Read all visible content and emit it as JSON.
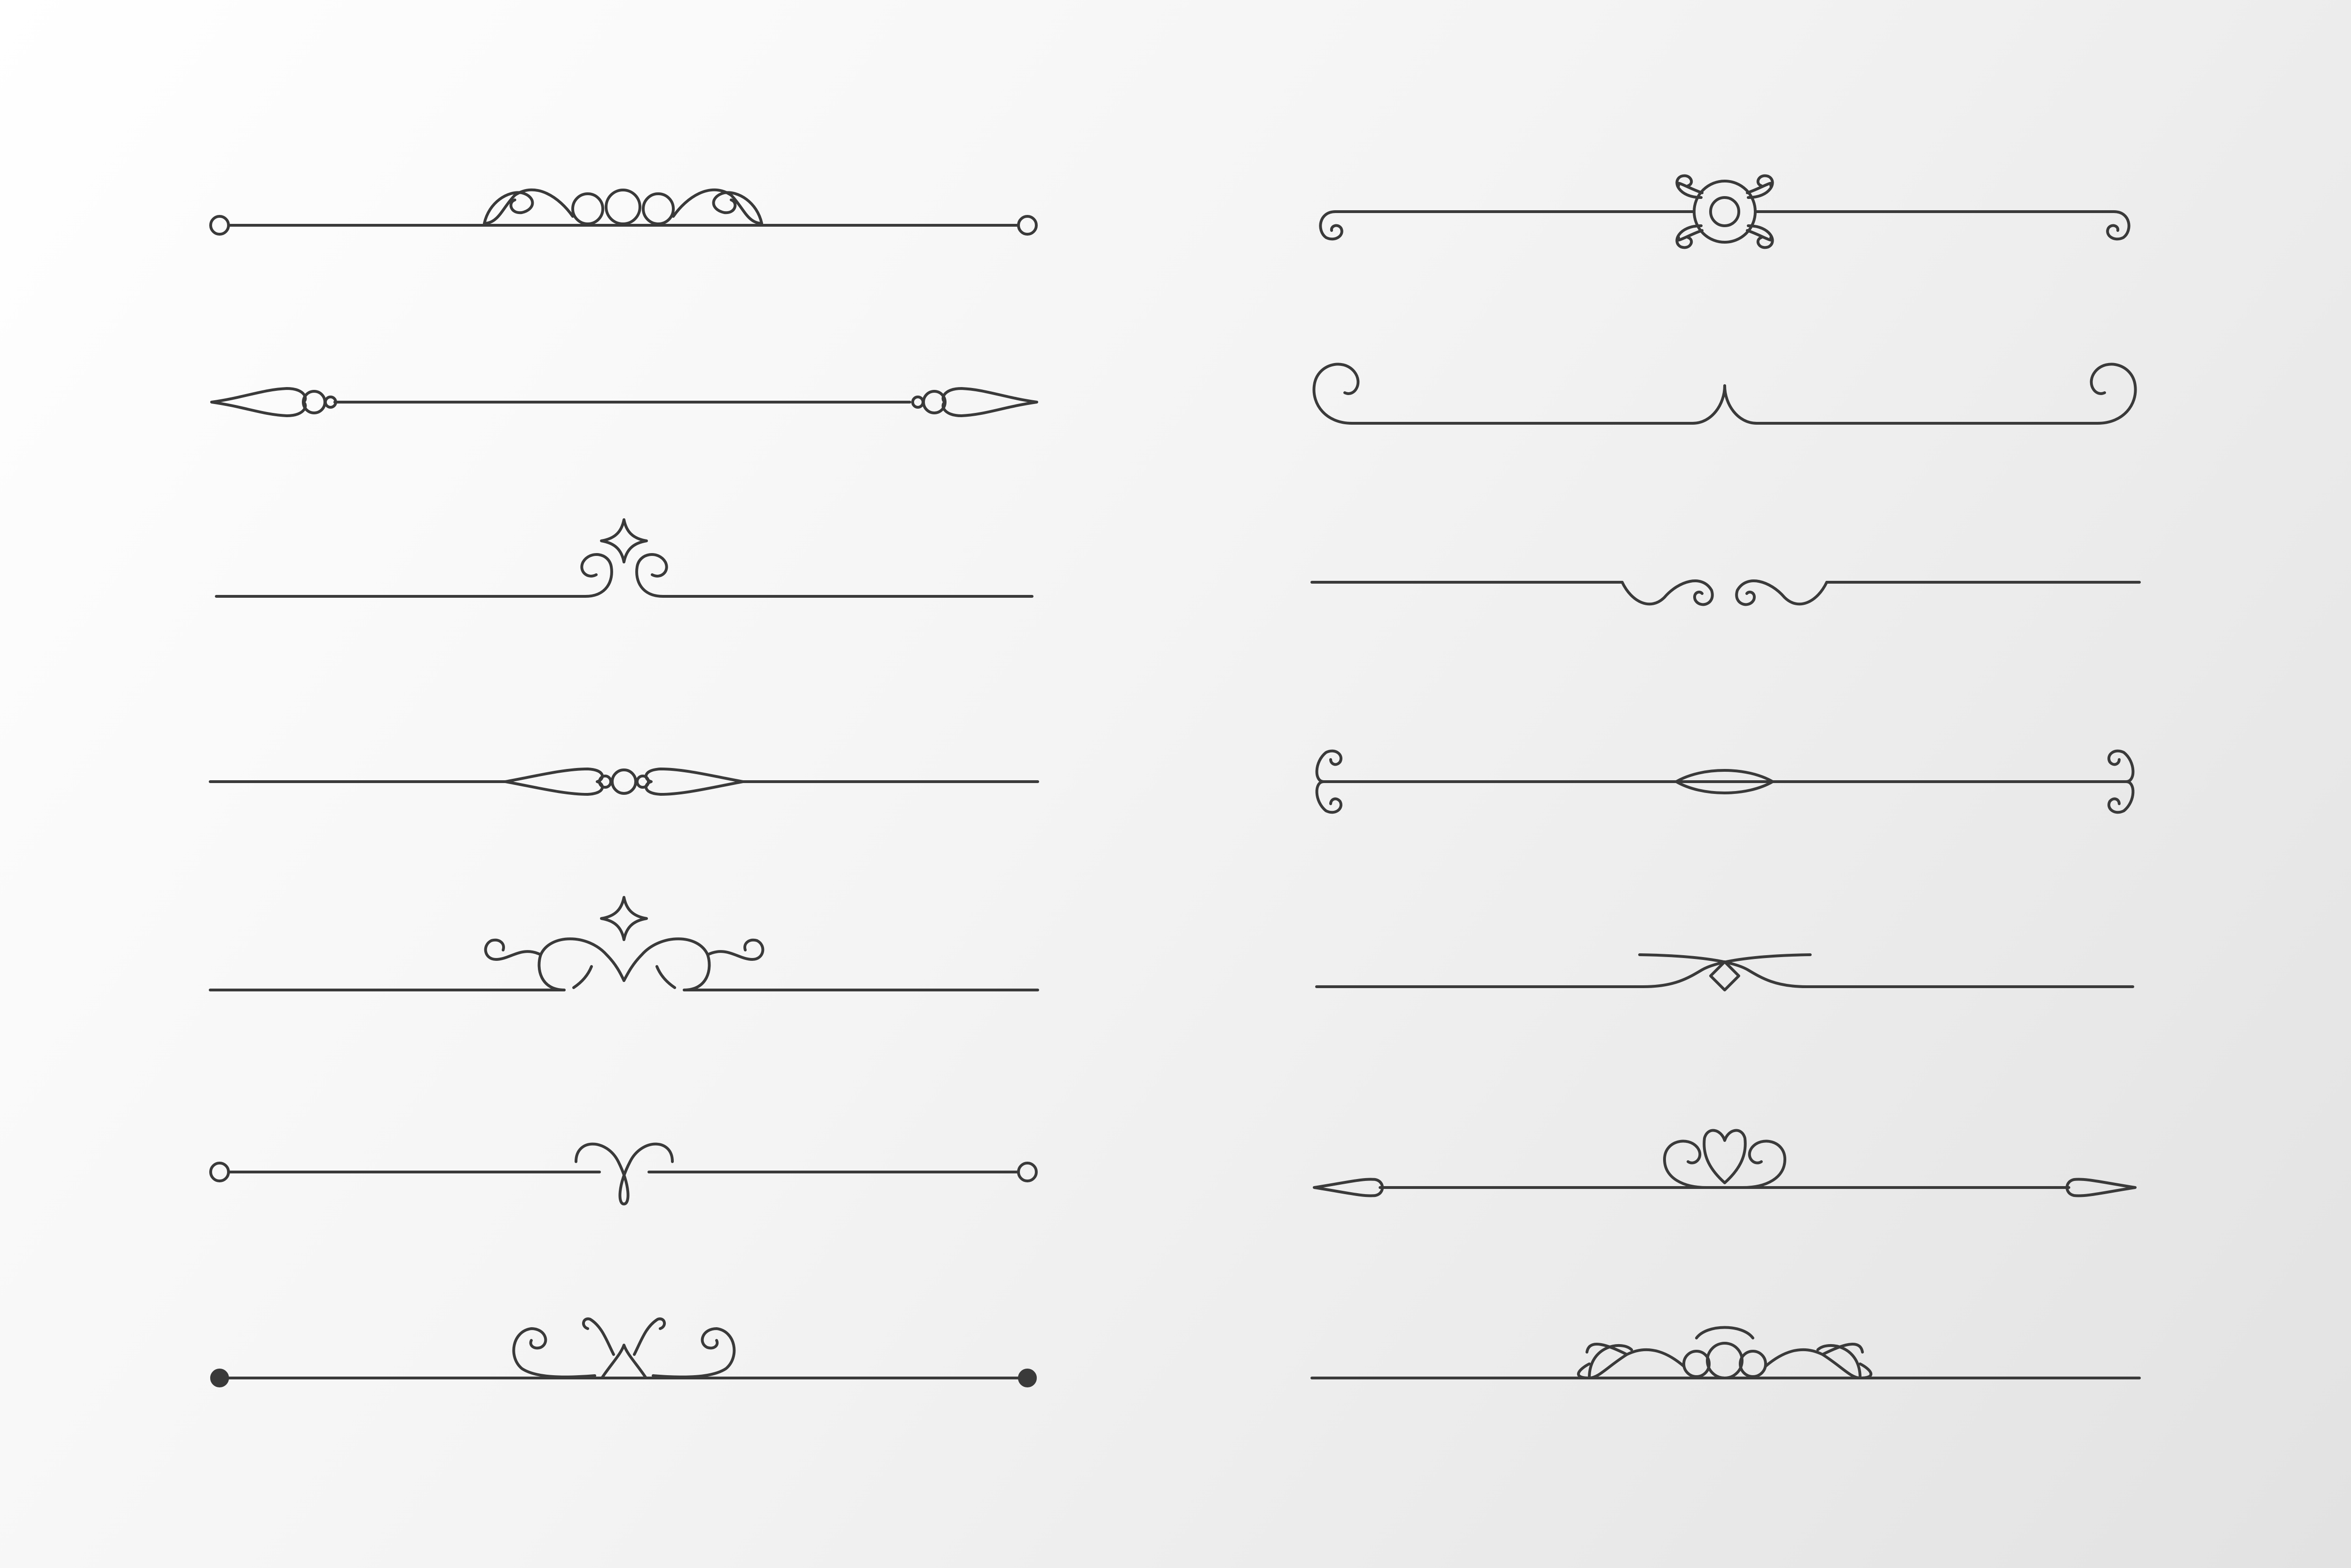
{
  "artwork": {
    "subject": "ornamental-divider-set",
    "stroke_color": "#3a3a3a",
    "background_colors": [
      "#ffffff",
      "#e2e2e2"
    ]
  },
  "columns": [
    {
      "dividers": [
        {
          "style": "swirl-crest-open-dots"
        },
        {
          "style": "beaded-spindle"
        },
        {
          "style": "star-curl-dip"
        },
        {
          "style": "center-bead-spindle"
        },
        {
          "style": "star-scroll-crest"
        },
        {
          "style": "loop-knot-open-dots"
        },
        {
          "style": "tulip-scroll-filled-dots"
        }
      ]
    },
    {
      "dividers": [
        {
          "style": "medallion-curled-ends"
        },
        {
          "style": "spiral-corners-peak"
        },
        {
          "style": "wave-curls-dip"
        },
        {
          "style": "lens-double-scroll-ends"
        },
        {
          "style": "diamond-cross-sweep"
        },
        {
          "style": "heart-scroll-spindle"
        },
        {
          "style": "rings-wave-crest"
        }
      ]
    }
  ]
}
